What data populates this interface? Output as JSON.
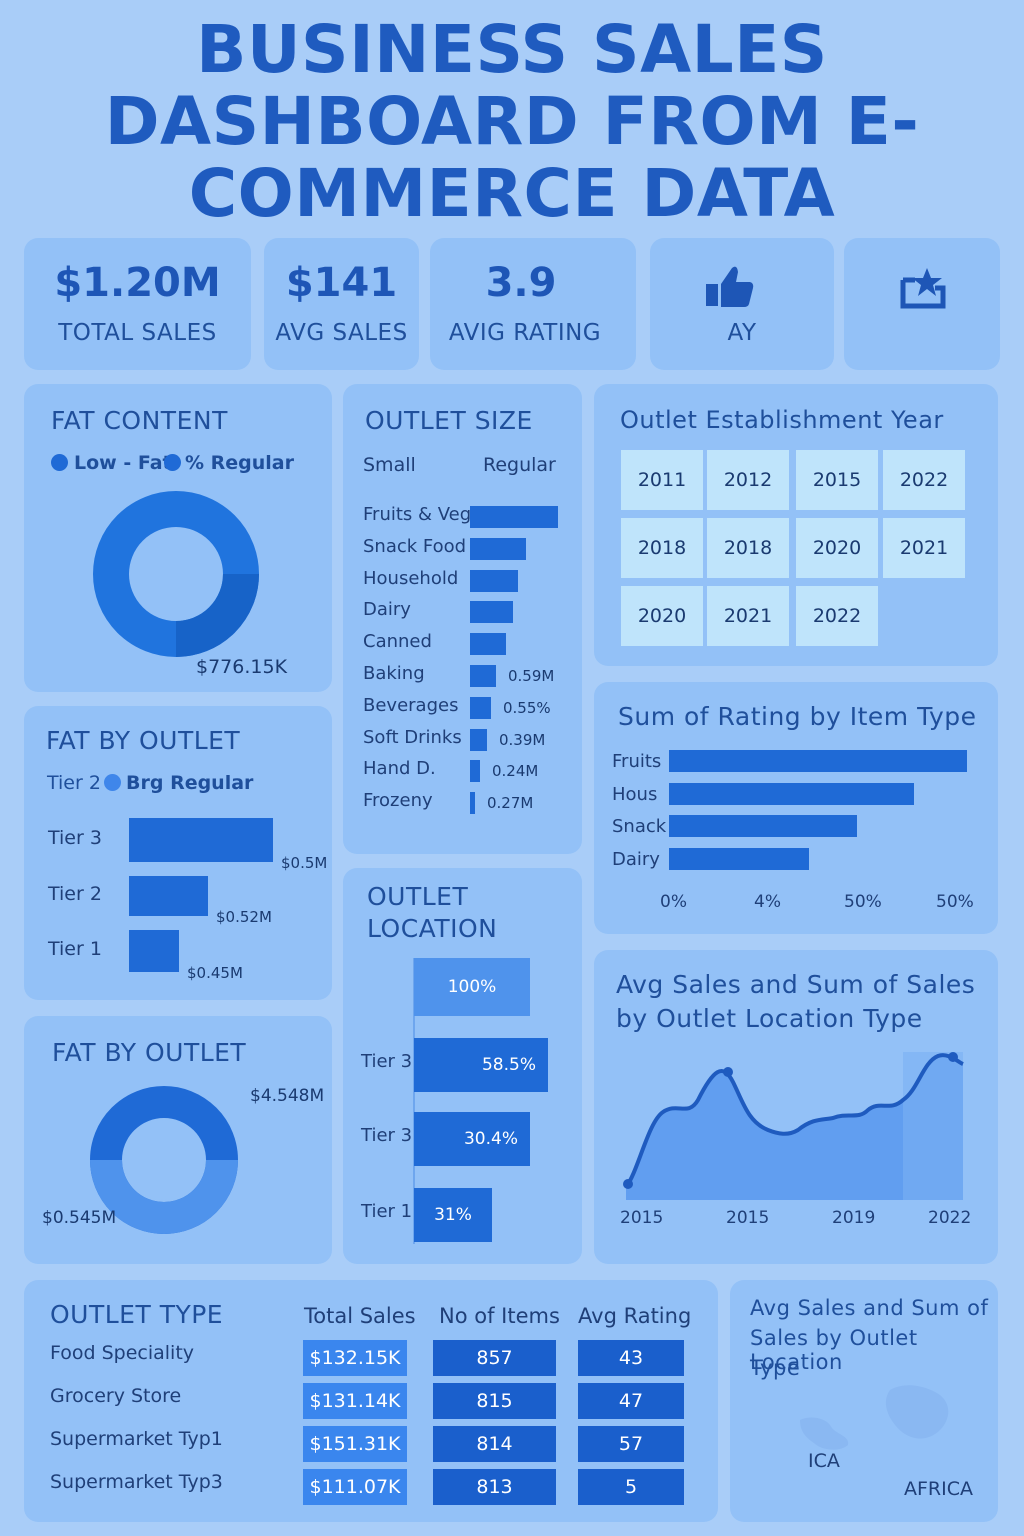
{
  "header": {
    "title_line1": "BUSINESS SALES",
    "title_line2": "DASHBOARD FROM E-",
    "title_line3": "COMMERCE DATA"
  },
  "kpis": [
    {
      "value": "$1.20M",
      "label": "TOTAL SALES"
    },
    {
      "value": "$141",
      "label": "AVG SALES"
    },
    {
      "value": "3.9",
      "label": "AVIG RATING"
    },
    {
      "icon": "thumbs-up-icon",
      "label": "AY"
    },
    {
      "icon": "star-box-icon"
    }
  ],
  "fat_content": {
    "title": "FAT CONTENT",
    "legend_low": "Low - Fat",
    "legend_regular": "% Regular",
    "value_label": "$776.15K"
  },
  "outlet_size": {
    "title": "OUTLET SIZE",
    "col_small": "Small",
    "col_regular": "Regular",
    "items": [
      {
        "label": "Fruits & Veg",
        "value_label": ""
      },
      {
        "label": "Snack Food",
        "value_label": ""
      },
      {
        "label": "Household",
        "value_label": ""
      },
      {
        "label": "Dairy",
        "value_label": ""
      },
      {
        "label": "Canned",
        "value_label": ""
      },
      {
        "label": "Baking",
        "value_label": "0.59M"
      },
      {
        "label": "Beverages",
        "value_label": "0.55%"
      },
      {
        "label": "Soft Drinks",
        "value_label": "0.39M"
      },
      {
        "label": "Hand D.",
        "value_label": "0.24M"
      },
      {
        "label": "Frozeny",
        "value_label": "0.27M"
      }
    ]
  },
  "establishment": {
    "title": "Outlet Establishment Year",
    "years": [
      "2011",
      "2012",
      "2015",
      "2022",
      "2018",
      "2018",
      "2020",
      "2021",
      "2020",
      "2021",
      "2022"
    ]
  },
  "fat_by_outlet_bars": {
    "title": "FAT BY OUTLET",
    "legend_tier": "Tier 2",
    "legend_regular": "Brg Regular",
    "rows": [
      {
        "label": "Tier 3",
        "value_label": "$0.5M"
      },
      {
        "label": "Tier 2",
        "value_label": "$0.52M"
      },
      {
        "label": "Tier 1",
        "value_label": "$0.45M"
      }
    ]
  },
  "rating_by_item": {
    "title": "Sum of Rating by Item Type",
    "items": [
      {
        "label": "Fruits"
      },
      {
        "label": "Hous"
      },
      {
        "label": "Snack"
      },
      {
        "label": "Dairy"
      }
    ],
    "ticks": [
      "0%",
      "4%",
      "50%",
      "50%"
    ]
  },
  "fat_by_outlet_donut": {
    "title": "FAT BY OUTLET",
    "value_top": "$4.548M",
    "value_bottom": "$0.545M"
  },
  "outlet_location": {
    "title_line1": "OUTLET",
    "title_line2": "LOCATION",
    "rows": [
      {
        "label": "",
        "value": "100%"
      },
      {
        "label": "Tier 3",
        "value": "58.5%"
      },
      {
        "label": "Tier 3",
        "value": "30.4%"
      },
      {
        "label": "Tier 1",
        "value": "31%"
      }
    ]
  },
  "area_chart": {
    "title_line1": "Avg Sales and Sum of Sales",
    "title_line2": "by Outlet Location Type",
    "x_labels": [
      "2015",
      "2015",
      "2019",
      "2022"
    ]
  },
  "outlet_type": {
    "title": "OUTLET TYPE",
    "col_sales": "Total Sales",
    "col_items": "No of Items",
    "col_rating": "Avg Rating",
    "rows": [
      {
        "name": "Food Speciality",
        "sales": "$132.15K",
        "items": "857",
        "rating": "43"
      },
      {
        "name": "Grocery Store",
        "sales": "$131.14K",
        "items": "815",
        "rating": "47"
      },
      {
        "name": "Supermarket Typ1",
        "sales": "$151.31K",
        "items": "814",
        "rating": "57"
      },
      {
        "name": "Supermarket Typ3",
        "sales": "$111.07K",
        "items": "813",
        "rating": "5"
      }
    ]
  },
  "map_card": {
    "title_line1": "Avg Sales and Sum of",
    "title_line2": "Sales by Outlet Location",
    "title_line3": "Type",
    "label_a": "ICA",
    "label_b": "AFRICA"
  },
  "colors": {
    "background": "#a9cdf8",
    "card": "#93c1f7",
    "accent": "#1f6ad6",
    "title": "#1f5bbf",
    "year_tile": "#bfe4fb"
  }
}
